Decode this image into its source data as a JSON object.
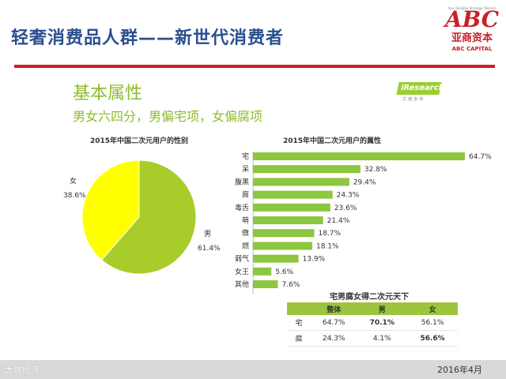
{
  "slide": {
    "title": "轻奢消费品人群——新世代消费者",
    "section_heading": "基本属性",
    "section_subheading": "男女六四分，男偏宅项，女偏腐项",
    "date": "2016年4月",
    "watermark": "大数经济"
  },
  "logo": {
    "tagline": "Your Reliable Strategic Partner",
    "abc": "ABC",
    "cn": "亚商资本",
    "en": "ABC CAPITAL",
    "accent": "#c8202a"
  },
  "source_logo": {
    "text": "iResearch",
    "cn": "艾瑞咨询"
  },
  "colors": {
    "title": "#2a4f8f",
    "green": "#8dbb2a",
    "bar": "#8dc63f",
    "pie_female": "#ffff00",
    "table_header": "#9bc53d"
  },
  "chart_data": [
    {
      "type": "pie",
      "title": "2015年中国二次元用户的性别",
      "categories": [
        "女",
        "男"
      ],
      "values": [
        38.6,
        61.4
      ],
      "value_labels": [
        "38.6%",
        "61.4%"
      ],
      "colors": [
        "#ffff00",
        "#a8cc2a"
      ],
      "legend": "none"
    },
    {
      "type": "bar",
      "orientation": "horizontal",
      "title": "2015年中国二次元用户的属性",
      "categories": [
        "宅",
        "呆",
        "腹黑",
        "腐",
        "毒舌",
        "萌",
        "傲",
        "燃",
        "弱气",
        "女王",
        "其他"
      ],
      "values": [
        64.7,
        32.8,
        29.4,
        24.3,
        23.6,
        21.4,
        18.7,
        18.1,
        13.9,
        5.6,
        7.6
      ],
      "value_labels": [
        "64.7%",
        "32.8%",
        "29.4%",
        "24.3%",
        "23.6%",
        "21.4%",
        "18.7%",
        "18.1%",
        "13.9%",
        "5.6%",
        "7.6%"
      ],
      "xlim": [
        0,
        70
      ],
      "grid": false,
      "color": "#8dc63f"
    },
    {
      "type": "table",
      "title": "宅男腐女得二次元天下",
      "columns": [
        "",
        "整体",
        "男",
        "女"
      ],
      "rows": [
        [
          "宅",
          "64.7%",
          "70.1%",
          "56.1%"
        ],
        [
          "腐",
          "24.3%",
          "4.1%",
          "56.6%"
        ]
      ],
      "bold_cells": [
        [
          0,
          2
        ],
        [
          1,
          3
        ]
      ]
    }
  ]
}
